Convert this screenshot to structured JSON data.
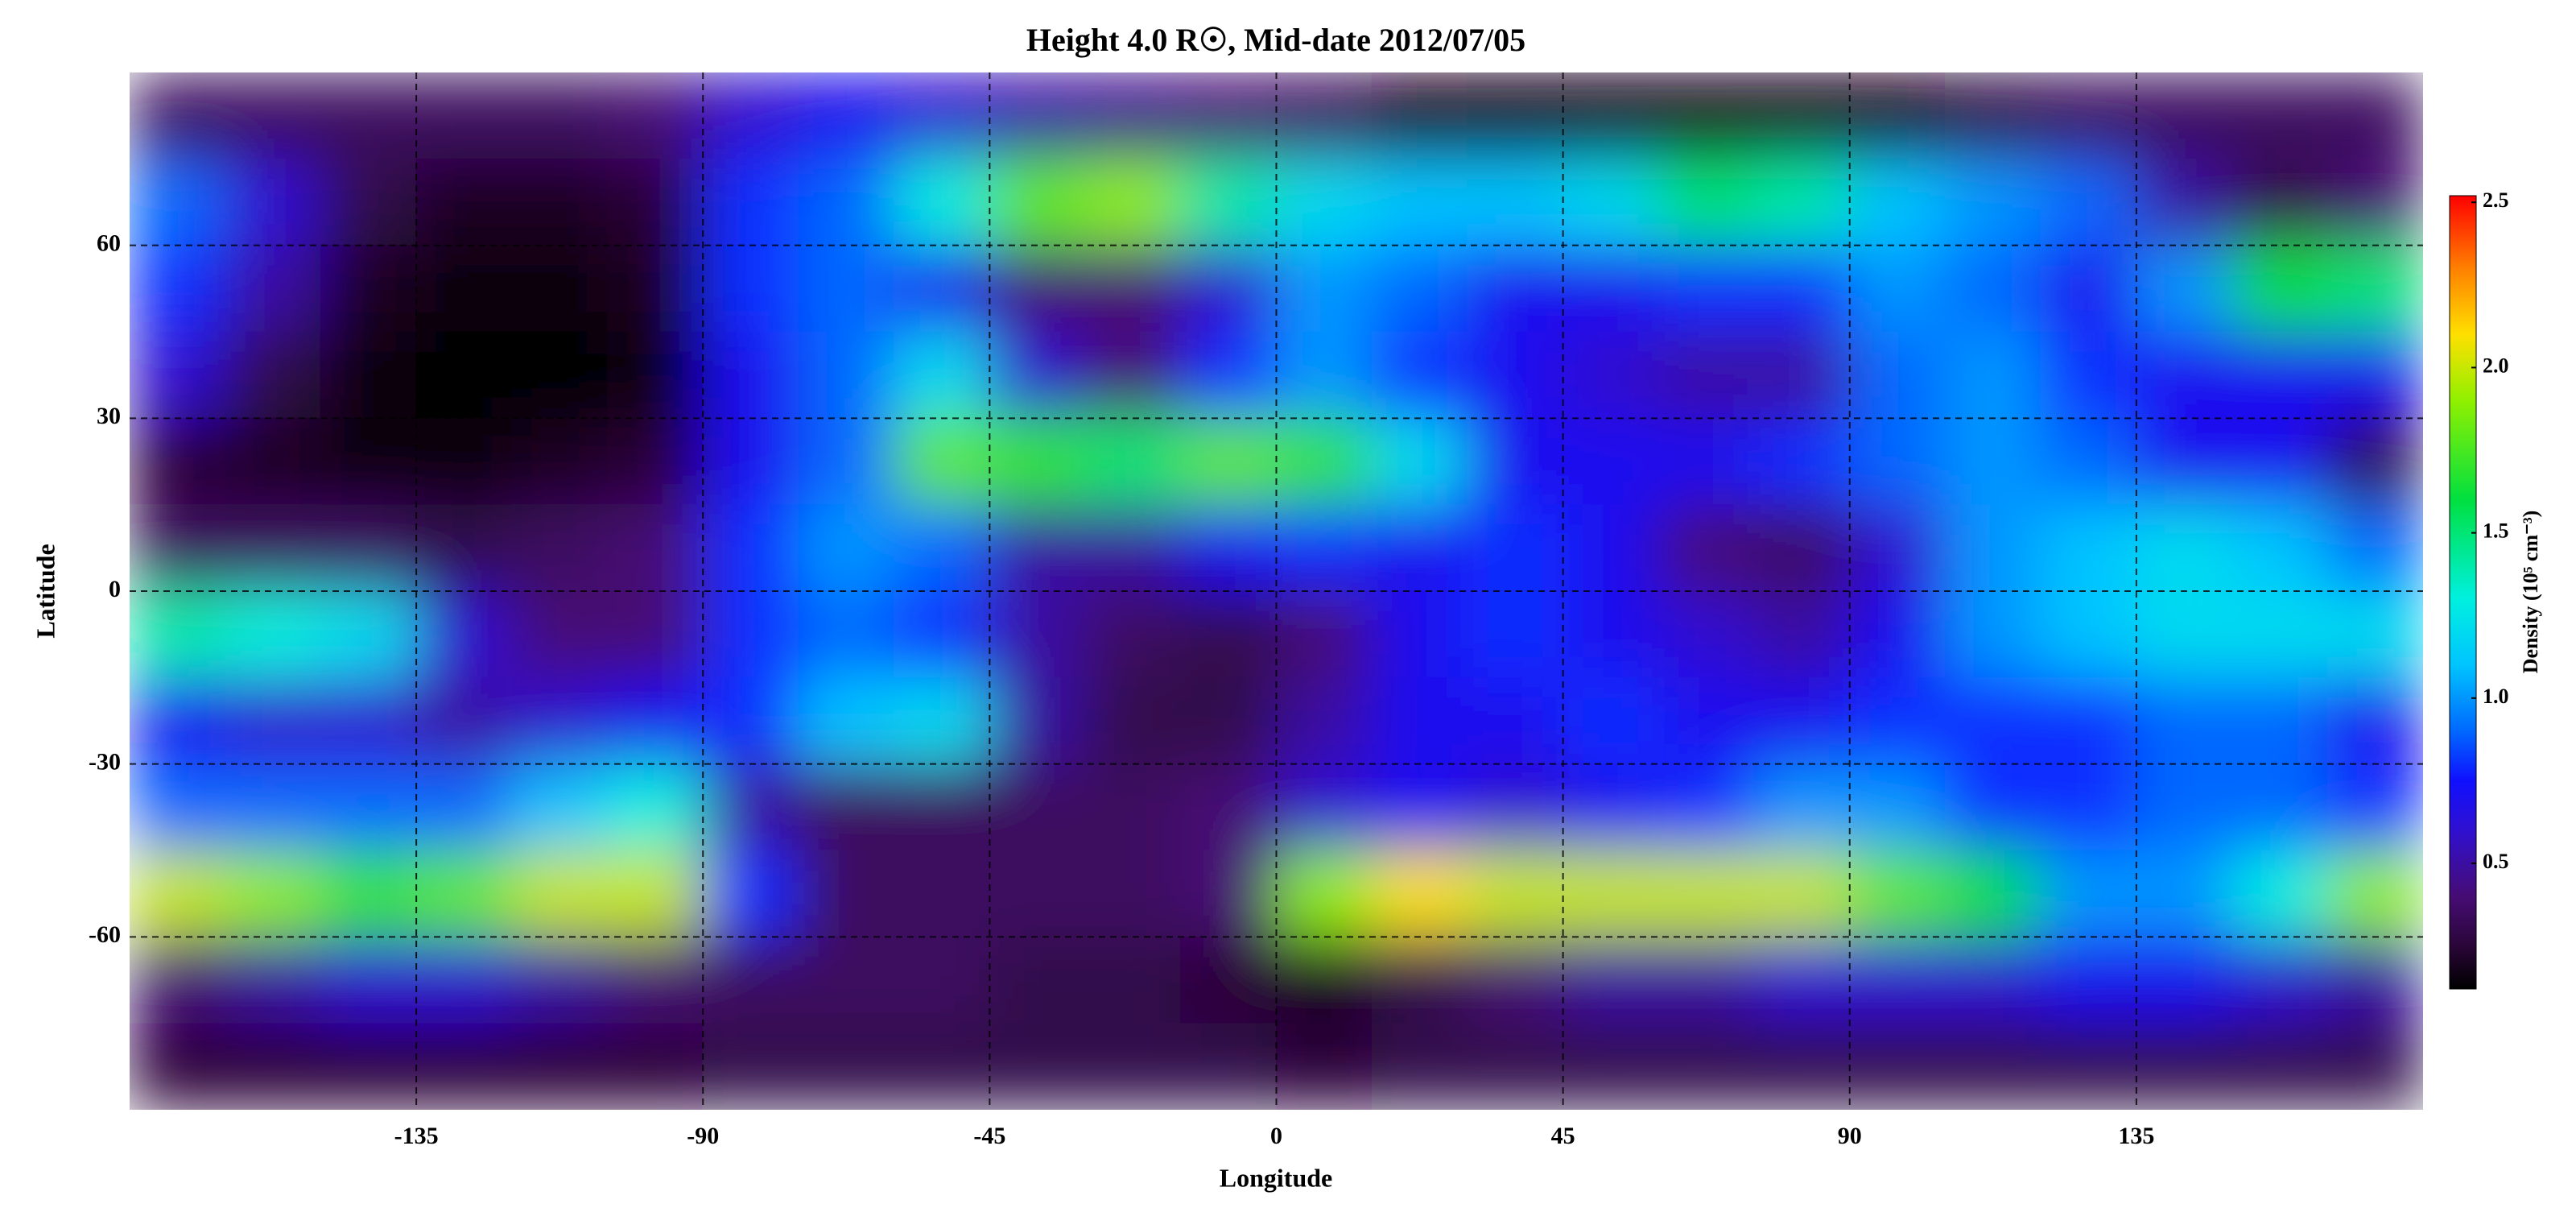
{
  "chart_data": {
    "type": "heatmap",
    "title": "Height 4.0 R☉, Mid-date 2012/07/05",
    "x_label": "Longitude",
    "y_label": "Latitude",
    "colorbar_label": "Density (10⁵ cm⁻³)",
    "x": [
      -172.5,
      -157.5,
      -142.5,
      -127.5,
      -112.5,
      -97.5,
      -82.5,
      -67.5,
      -52.5,
      -37.5,
      -22.5,
      -7.5,
      7.5,
      22.5,
      37.5,
      52.5,
      67.5,
      82.5,
      97.5,
      112.5,
      127.5,
      142.5,
      157.5,
      172.5
    ],
    "y": [
      82.5,
      67.5,
      52.5,
      37.5,
      22.5,
      7.5,
      -7.5,
      -22.5,
      -37.5,
      -52.5,
      -67.5,
      -82.5
    ],
    "z": [
      [
        0.35,
        0.35,
        0.35,
        0.35,
        0.35,
        0.4,
        0.6,
        0.7,
        0.6,
        0.5,
        0.45,
        0.4,
        0.35,
        0.2,
        0.18,
        0.18,
        0.18,
        0.18,
        0.2,
        0.3,
        0.35,
        0.35,
        0.35,
        0.35
      ],
      [
        0.9,
        0.6,
        0.3,
        0.2,
        0.2,
        0.25,
        0.8,
        0.9,
        1.3,
        1.8,
        1.9,
        1.4,
        1.2,
        1.1,
        1.1,
        1.2,
        1.5,
        1.4,
        1.1,
        1.0,
        0.9,
        0.5,
        0.3,
        0.4
      ],
      [
        0.8,
        0.5,
        0.2,
        0.15,
        0.15,
        0.2,
        0.8,
        0.9,
        0.7,
        0.4,
        0.4,
        0.6,
        1.0,
        0.9,
        0.7,
        0.7,
        0.8,
        0.8,
        1.0,
        0.9,
        0.7,
        1.0,
        1.6,
        1.5
      ],
      [
        0.6,
        0.3,
        0.15,
        0.12,
        0.12,
        0.15,
        0.7,
        0.9,
        1.2,
        0.6,
        0.4,
        0.8,
        1.0,
        0.8,
        0.7,
        0.6,
        0.5,
        0.5,
        0.9,
        1.0,
        0.8,
        0.7,
        0.7,
        0.7
      ],
      [
        0.25,
        0.2,
        0.15,
        0.15,
        0.2,
        0.25,
        0.7,
        0.9,
        1.8,
        1.7,
        1.5,
        1.8,
        1.7,
        1.2,
        0.7,
        0.7,
        0.7,
        0.8,
        0.9,
        1.0,
        0.9,
        0.7,
        0.7,
        0.3
      ],
      [
        0.35,
        0.35,
        0.35,
        0.3,
        0.35,
        0.4,
        0.8,
        1.0,
        0.9,
        0.5,
        0.5,
        0.7,
        0.8,
        0.7,
        0.8,
        0.7,
        0.4,
        0.35,
        0.6,
        1.0,
        1.1,
        1.2,
        1.1,
        0.9
      ],
      [
        1.4,
        1.3,
        1.2,
        0.6,
        0.4,
        0.4,
        0.8,
        0.9,
        0.8,
        0.5,
        0.35,
        0.3,
        0.4,
        0.7,
        0.8,
        0.7,
        0.6,
        0.5,
        0.7,
        1.0,
        1.1,
        1.2,
        1.2,
        1.2
      ],
      [
        0.7,
        0.6,
        0.6,
        0.5,
        0.6,
        0.7,
        0.8,
        1.1,
        1.2,
        0.5,
        0.3,
        0.3,
        0.5,
        0.7,
        0.7,
        0.8,
        0.7,
        0.7,
        0.8,
        0.8,
        0.8,
        0.9,
        0.9,
        0.7
      ],
      [
        0.9,
        0.9,
        0.9,
        0.9,
        1.1,
        1.3,
        0.5,
        0.35,
        0.35,
        0.35,
        0.35,
        0.4,
        0.6,
        0.7,
        0.6,
        0.7,
        0.8,
        1.0,
        1.0,
        0.8,
        0.8,
        0.9,
        0.9,
        0.8
      ],
      [
        2.0,
        1.9,
        1.7,
        1.8,
        2.0,
        2.0,
        0.8,
        0.35,
        0.35,
        0.35,
        0.35,
        0.4,
        1.9,
        2.1,
        2.0,
        2.0,
        2.0,
        2.0,
        1.8,
        1.6,
        1.0,
        1.0,
        1.3,
        1.9
      ],
      [
        0.4,
        0.5,
        0.6,
        0.6,
        0.5,
        0.4,
        0.35,
        0.35,
        0.35,
        0.3,
        0.3,
        0.25,
        0.2,
        0.3,
        0.4,
        0.5,
        0.5,
        0.6,
        0.6,
        0.6,
        0.7,
        0.7,
        0.6,
        0.5
      ],
      [
        0.25,
        0.25,
        0.25,
        0.25,
        0.25,
        0.25,
        0.3,
        0.3,
        0.3,
        0.3,
        0.3,
        0.3,
        0.25,
        0.3,
        0.3,
        0.3,
        0.3,
        0.3,
        0.3,
        0.3,
        0.3,
        0.3,
        0.3,
        0.3
      ]
    ],
    "xlim": [
      -180,
      180
    ],
    "xticks": [
      -135,
      -90,
      -45,
      0,
      45,
      90,
      135
    ],
    "ylim": [
      -90,
      90
    ],
    "yticks": [
      -60,
      -30,
      0,
      30,
      60
    ],
    "zlim": [
      0.12,
      2.52
    ],
    "zticks": [
      0.5,
      {
        "value": 1,
        "label": "1.0"
      },
      1.5,
      {
        "value": 2,
        "label": "2.0"
      },
      2.5
    ],
    "grid": true,
    "colormap": [
      [
        0.12,
        "#000000"
      ],
      [
        0.25,
        "#2a0638"
      ],
      [
        0.4,
        "#460c74"
      ],
      [
        0.6,
        "#3010d0"
      ],
      [
        0.75,
        "#1010ff"
      ],
      [
        0.9,
        "#0068ff"
      ],
      [
        1.1,
        "#00c4ff"
      ],
      [
        1.3,
        "#00f0e0"
      ],
      [
        1.6,
        "#00e040"
      ],
      [
        1.9,
        "#90f000"
      ],
      [
        2.1,
        "#ffe000"
      ],
      [
        2.3,
        "#ff8000"
      ],
      [
        2.52,
        "#ff0000"
      ]
    ]
  }
}
